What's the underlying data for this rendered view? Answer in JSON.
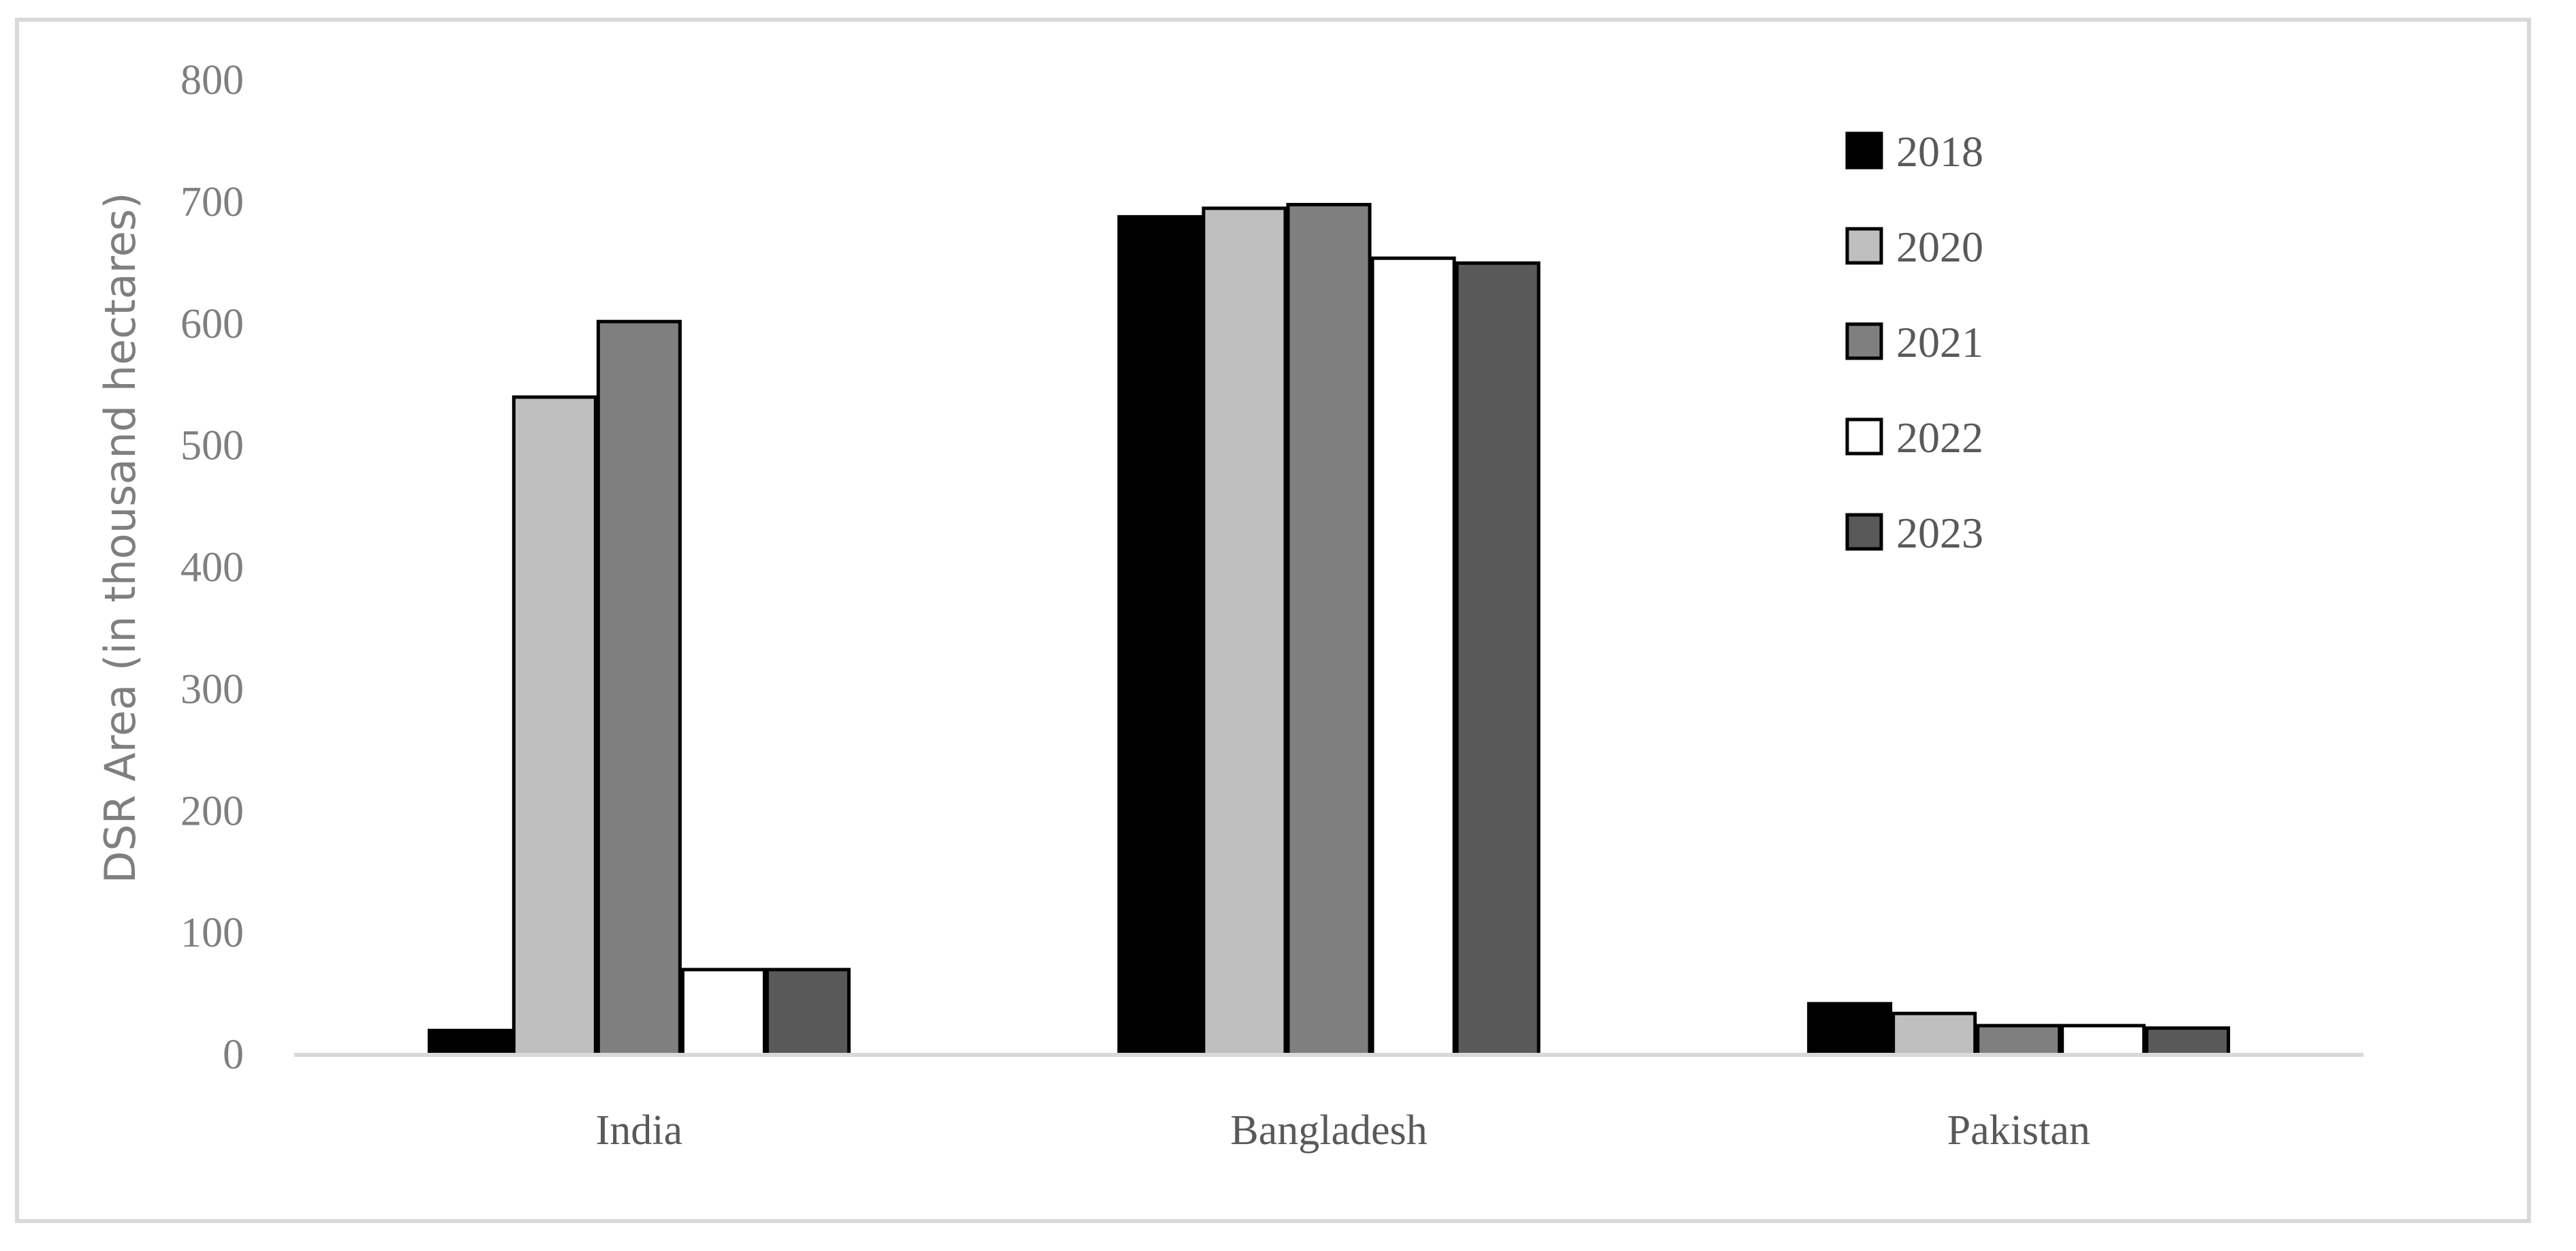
{
  "chart_data": {
    "type": "bar",
    "title": "",
    "xlabel": "",
    "ylabel": "DSR Area (in thousand hectares)",
    "ylim": [
      0,
      800
    ],
    "yticks": [
      0,
      100,
      200,
      300,
      400,
      500,
      600,
      700,
      800
    ],
    "grid": false,
    "legend_position": "top-right",
    "categories": [
      "India",
      "Bangladesh",
      "Pakistan"
    ],
    "series": [
      {
        "name": "2018",
        "color": "#000000",
        "values": [
          20,
          688,
          42
        ]
      },
      {
        "name": "2020",
        "color": "#bfbfbf",
        "values": [
          540,
          695,
          34
        ]
      },
      {
        "name": "2021",
        "color": "#7f7f7f",
        "values": [
          602,
          698,
          24
        ]
      },
      {
        "name": "2022",
        "color": "#ffffff",
        "values": [
          70,
          654,
          24
        ]
      },
      {
        "name": "2023",
        "color": "#595959",
        "values": [
          70,
          650,
          22
        ]
      }
    ]
  }
}
